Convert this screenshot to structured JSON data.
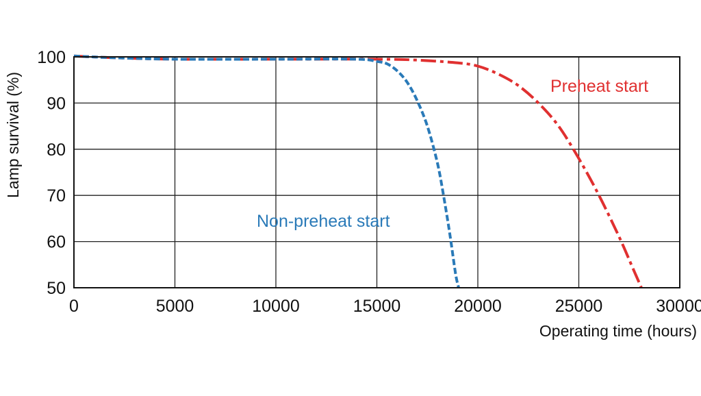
{
  "chart_data": {
    "type": "line",
    "xlabel": "Operating time (hours)",
    "ylabel": "Lamp survival  (%)",
    "xlim": [
      0,
      30000
    ],
    "ylim": [
      50,
      100
    ],
    "x_ticks": [
      "0",
      "5000",
      "10000",
      "15000",
      "20000",
      "25000",
      "30000"
    ],
    "y_ticks": [
      "50",
      "60",
      "70",
      "80",
      "90",
      "100"
    ],
    "grid": true,
    "series": [
      {
        "name": "Non-preheat start",
        "color": "#2a7ab8",
        "line_style": "dashed",
        "points": [
          [
            0,
            100.2
          ],
          [
            2000,
            99.8
          ],
          [
            5000,
            99.5
          ],
          [
            10000,
            99.5
          ],
          [
            14000,
            99.5
          ],
          [
            15000,
            99.0
          ],
          [
            15500,
            98.5
          ],
          [
            16000,
            97.0
          ],
          [
            16500,
            94.5
          ],
          [
            17000,
            90.5
          ],
          [
            17500,
            85.0
          ],
          [
            18000,
            77.0
          ],
          [
            18300,
            70.0
          ],
          [
            18600,
            62.0
          ],
          [
            18900,
            53.0
          ],
          [
            19050,
            50.0
          ]
        ]
      },
      {
        "name": "Preheat start",
        "color": "#e03030",
        "line_style": "dashdot",
        "points": [
          [
            0,
            100.2
          ],
          [
            2000,
            99.8
          ],
          [
            5000,
            99.5
          ],
          [
            10000,
            99.5
          ],
          [
            15000,
            99.5
          ],
          [
            17000,
            99.3
          ],
          [
            19000,
            98.7
          ],
          [
            20000,
            98.0
          ],
          [
            21000,
            96.3
          ],
          [
            22000,
            93.8
          ],
          [
            23000,
            90.0
          ],
          [
            24000,
            85.0
          ],
          [
            25000,
            78.0
          ],
          [
            26000,
            70.0
          ],
          [
            27000,
            61.0
          ],
          [
            27700,
            54.0
          ],
          [
            28100,
            50.0
          ]
        ]
      }
    ]
  }
}
